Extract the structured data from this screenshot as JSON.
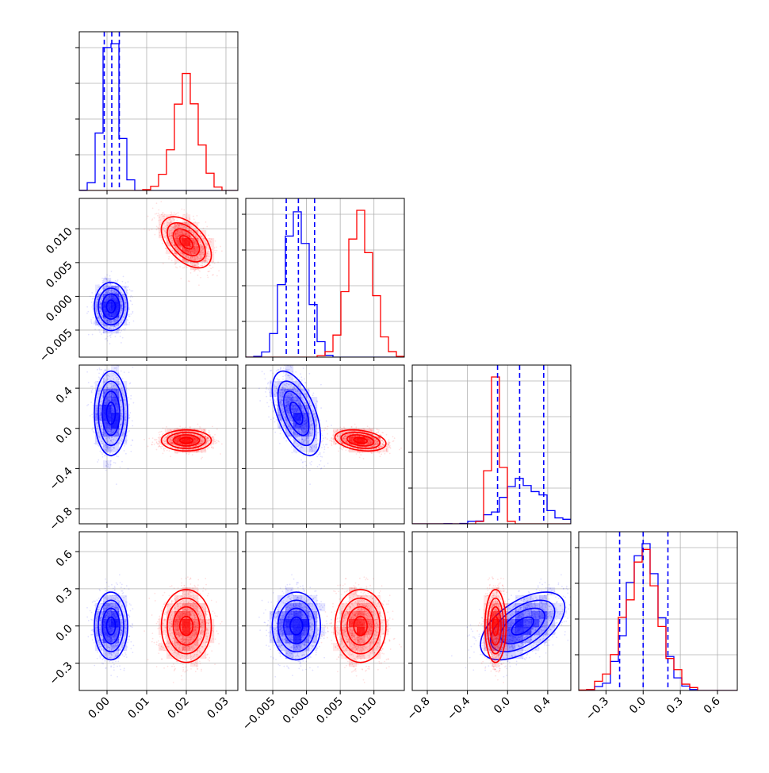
{
  "chart_data": {
    "type": "corner",
    "series": [
      {
        "name": "",
        "color": "#0000ff",
        "center": [
          0.001,
          -0.0015,
          0.15,
          0.0
        ],
        "sd": [
          0.002,
          0.0017,
          0.2,
          0.13
        ],
        "corr": [
          [
            1,
            0,
            0,
            0
          ],
          [
            0,
            1,
            -0.55,
            0
          ],
          [
            0,
            -0.55,
            1,
            0.55
          ],
          [
            0,
            0,
            0.55,
            1
          ]
        ],
        "quantiles": [
          [
            -0.0007,
            0.0012,
            0.0031
          ],
          [
            -0.003,
            -0.0012,
            0.0012
          ],
          [
            -0.1,
            0.12,
            0.36
          ],
          [
            -0.19,
            0.0,
            0.2
          ]
        ]
      },
      {
        "name": "",
        "color": "#ff0000",
        "center": [
          0.02,
          0.008,
          -0.12,
          0.0
        ],
        "sd": [
          0.003,
          0.0018,
          0.05,
          0.14
        ],
        "corr": [
          [
            1,
            -0.5,
            0,
            0
          ],
          [
            -0.5,
            1,
            -0.3,
            0
          ],
          [
            0,
            -0.3,
            1,
            0
          ],
          [
            0,
            0,
            0,
            1
          ]
        ]
      }
    ],
    "ranges": [
      [
        -0.007,
        0.033
      ],
      [
        -0.009,
        0.0145
      ],
      [
        -0.95,
        0.63
      ],
      [
        -0.52,
        0.76
      ]
    ],
    "ticks": [
      {
        "values": [
          0.0,
          0.01,
          0.02,
          0.03
        ],
        "labels": [
          "0.00",
          "0.01",
          "0.02",
          "0.03"
        ]
      },
      {
        "values": [
          -0.005,
          0.0,
          0.005,
          0.01
        ],
        "labels": [
          "−0.005",
          "0.000",
          "0.005",
          "0.010"
        ]
      },
      {
        "values": [
          -0.8,
          -0.4,
          0.0,
          0.4
        ],
        "labels": [
          "−0.8",
          "−0.4",
          "0.0",
          "0.4"
        ]
      },
      {
        "values": [
          -0.3,
          0.0,
          0.3,
          0.6
        ],
        "labels": [
          "−0.3",
          "0.0",
          "0.3",
          "0.6"
        ]
      }
    ],
    "grid": true
  }
}
